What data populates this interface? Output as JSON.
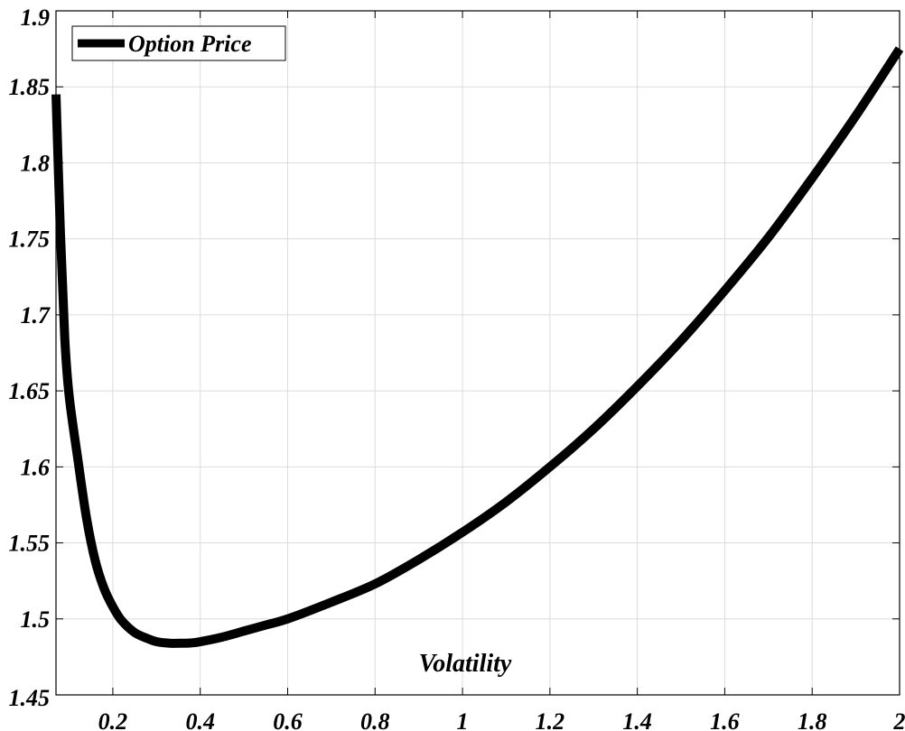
{
  "chart_data": {
    "type": "line",
    "xlabel": "Volatility",
    "ylabel": "",
    "title": "",
    "xlim": [
      0.07,
      2.0
    ],
    "ylim": [
      1.45,
      1.9
    ],
    "x_ticks": [
      "0.2",
      "0.4",
      "0.6",
      "0.8",
      "1",
      "1.2",
      "1.4",
      "1.6",
      "1.8",
      "2"
    ],
    "x_tick_values": [
      0.2,
      0.4,
      0.6,
      0.8,
      1.0,
      1.2,
      1.4,
      1.6,
      1.8,
      2.0
    ],
    "y_ticks": [
      "1.45",
      "1.5",
      "1.55",
      "1.6",
      "1.65",
      "1.7",
      "1.75",
      "1.8",
      "1.85",
      "1.9"
    ],
    "y_tick_values": [
      1.45,
      1.5,
      1.55,
      1.6,
      1.65,
      1.7,
      1.75,
      1.8,
      1.85,
      1.9
    ],
    "grid": true,
    "legend_position": "top-left",
    "line_color": "#000000",
    "series": [
      {
        "name": "Option Price",
        "x": [
          0.07,
          0.08,
          0.09,
          0.1,
          0.12,
          0.14,
          0.16,
          0.18,
          0.2,
          0.22,
          0.25,
          0.28,
          0.3,
          0.33,
          0.36,
          0.38,
          0.4,
          0.45,
          0.5,
          0.55,
          0.6,
          0.7,
          0.8,
          0.9,
          1.0,
          1.1,
          1.2,
          1.3,
          1.4,
          1.5,
          1.6,
          1.7,
          1.8,
          1.9,
          2.0
        ],
        "y": [
          1.845,
          1.755,
          1.685,
          1.647,
          1.605,
          1.566,
          1.538,
          1.52,
          1.508,
          1.499,
          1.491,
          1.487,
          1.485,
          1.484,
          1.484,
          1.4842,
          1.485,
          1.488,
          1.492,
          1.496,
          1.5,
          1.511,
          1.523,
          1.539,
          1.557,
          1.577,
          1.6,
          1.625,
          1.653,
          1.683,
          1.716,
          1.751,
          1.79,
          1.831,
          1.875
        ]
      }
    ]
  }
}
